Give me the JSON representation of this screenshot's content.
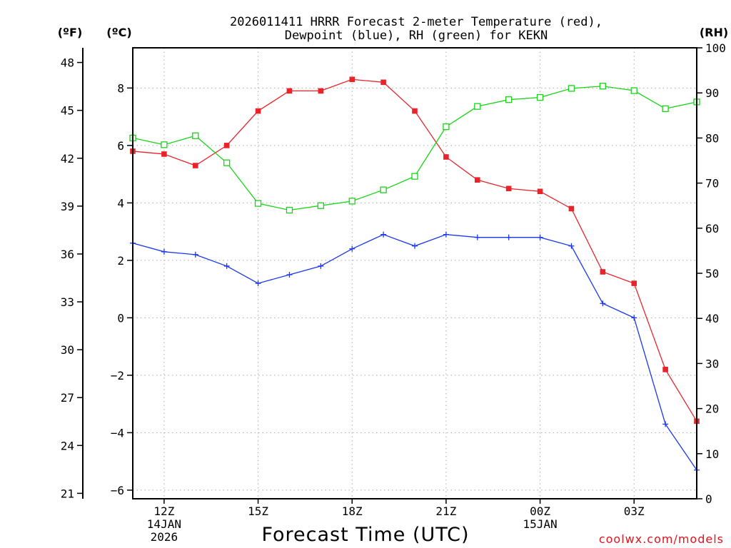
{
  "chart_data": {
    "type": "line",
    "title": [
      "2026011411 HRRR Forecast 2-meter Temperature (red),",
      "Dewpoint (blue), RH (green) for KEKN"
    ],
    "xlabel": "Forecast Time (UTC)",
    "credit": "coolwx.com/models",
    "axis_units": {
      "fahrenheit": "(ºF)",
      "celsius": "(ºC)",
      "rh": "(RH)"
    },
    "x": [
      11,
      12,
      13,
      14,
      15,
      16,
      17,
      18,
      19,
      20,
      21,
      22,
      23,
      24,
      25,
      26,
      27,
      28,
      29
    ],
    "xlim": [
      11,
      29
    ],
    "x_ticks": [
      {
        "x": 12,
        "label": "12Z",
        "sub": [
          "14JAN",
          "2026"
        ]
      },
      {
        "x": 15,
        "label": "15Z",
        "sub": []
      },
      {
        "x": 18,
        "label": "18Z",
        "sub": []
      },
      {
        "x": 21,
        "label": "21Z",
        "sub": []
      },
      {
        "x": 24,
        "label": "00Z",
        "sub": [
          "15JAN"
        ]
      },
      {
        "x": 27,
        "label": "03Z",
        "sub": []
      }
    ],
    "celsius_axis": {
      "ylim": [
        -6.3,
        9.4
      ],
      "ticks": [
        8,
        6,
        4,
        2,
        0,
        -2,
        -4,
        -6
      ],
      "tick_labels": [
        "8",
        "6",
        "4",
        "2",
        "0",
        "−2",
        "−4",
        "−6"
      ]
    },
    "fahrenheit_axis": {
      "ticks": [
        48,
        45,
        42,
        39,
        36,
        33,
        30,
        27,
        24,
        21
      ],
      "tick_labels": [
        "48",
        "45",
        "42",
        "39",
        "36",
        "33",
        "30",
        "27",
        "24",
        "21"
      ]
    },
    "rh_axis": {
      "ylim": [
        0,
        100
      ],
      "ticks": [
        100,
        90,
        80,
        70,
        60,
        50,
        40,
        30,
        20,
        10,
        0
      ],
      "tick_labels": [
        "100",
        "90",
        "80",
        "70",
        "60",
        "50",
        "40",
        "30",
        "20",
        "10",
        "0"
      ]
    },
    "series": [
      {
        "name": "Temperature",
        "axis": "celsius",
        "color": "#e8242a",
        "marker": "filled-square",
        "values": [
          5.8,
          5.7,
          5.3,
          6.0,
          7.2,
          7.9,
          7.9,
          8.3,
          8.2,
          7.2,
          5.6,
          4.8,
          4.5,
          4.4,
          3.8,
          1.6,
          1.2,
          -1.8,
          -3.6
        ]
      },
      {
        "name": "Dewpoint",
        "axis": "celsius",
        "color": "#1a37f0",
        "marker": "plus",
        "values": [
          2.6,
          2.3,
          2.2,
          1.8,
          1.2,
          1.5,
          1.8,
          2.4,
          2.9,
          2.5,
          2.9,
          2.8,
          2.8,
          2.8,
          2.5,
          0.5,
          0.0,
          -3.7,
          -5.3
        ]
      },
      {
        "name": "Relative Humidity",
        "axis": "rh",
        "color": "#19d419",
        "marker": "open-square",
        "values": [
          80,
          78.5,
          80.5,
          74.5,
          65.5,
          64,
          65,
          66,
          68.5,
          71.5,
          82.5,
          87,
          88.5,
          89,
          91,
          91.5,
          90.5,
          86.5,
          88
        ]
      }
    ]
  }
}
